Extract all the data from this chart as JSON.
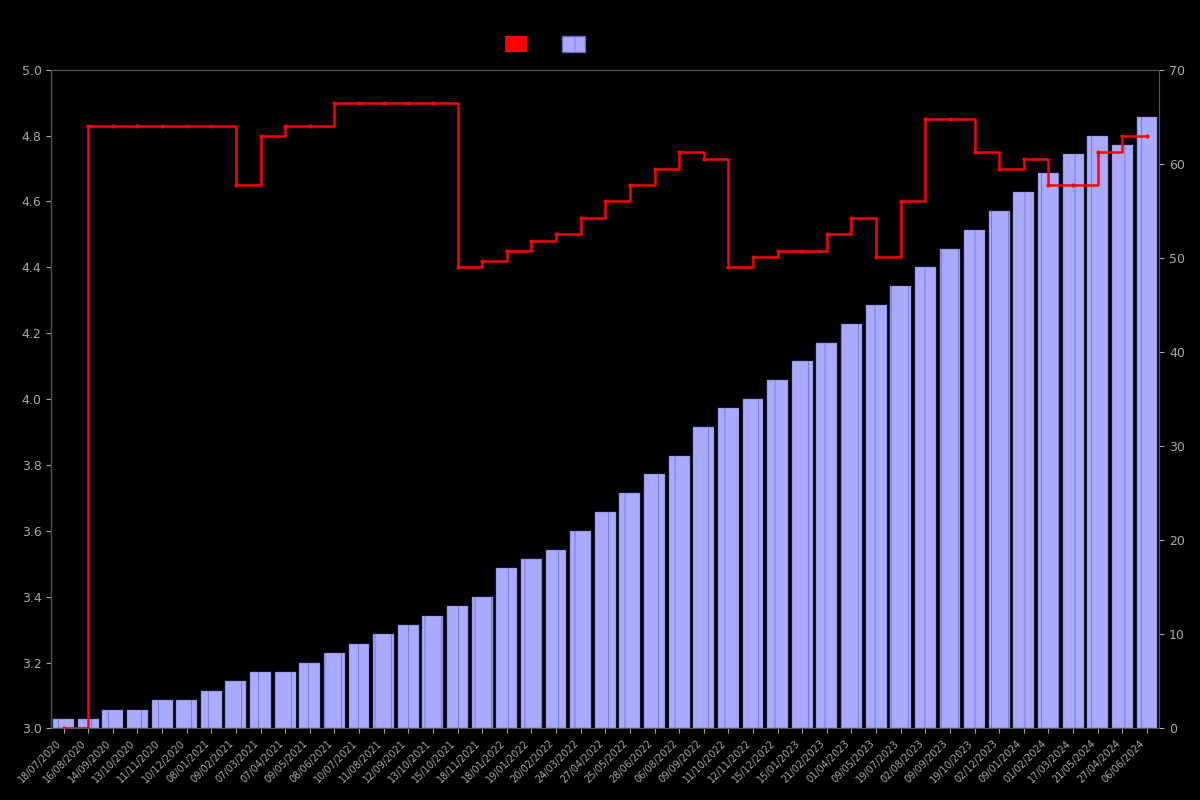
{
  "background_color": "#000000",
  "fig_facecolor": "#000000",
  "ax_facecolor": "#000000",
  "left_ylim": [
    3.0,
    5.0
  ],
  "right_ylim": [
    0,
    70
  ],
  "left_yticks": [
    3.0,
    3.2,
    3.4,
    3.6,
    3.8,
    4.0,
    4.2,
    4.4,
    4.6,
    4.8,
    5.0
  ],
  "right_yticks": [
    0,
    10,
    20,
    30,
    40,
    50,
    60,
    70
  ],
  "tick_color": "#aaaaaa",
  "spine_color": "#555555",
  "bar_facecolor": "#aaaaff",
  "bar_edgecolor": "#6666cc",
  "bar_hatch_color": "#ffffff",
  "line_color": "#ff0000",
  "line_width": 1.8,
  "dot_size": 3,
  "dates": [
    "18/07/2020",
    "16/08/2020",
    "14/09/2020",
    "13/10/2020",
    "11/11/2020",
    "10/12/2020",
    "08/01/2021",
    "09/02/2021",
    "07/03/2021",
    "07/04/2021",
    "09/05/2021",
    "08/06/2021",
    "10/07/2021",
    "11/08/2021",
    "12/09/2021",
    "13/10/2021",
    "15/10/2021",
    "18/11/2021",
    "18/01/2022",
    "19/01/2022",
    "20/02/2022",
    "24/03/2022",
    "27/04/2022",
    "25/05/2022",
    "28/06/2022",
    "06/08/2022",
    "09/09/2022",
    "11/10/2022",
    "12/11/2022",
    "15/12/2022",
    "15/01/2023",
    "21/02/2023",
    "01/04/2023",
    "09/05/2023",
    "19/07/2023",
    "02/08/2023",
    "09/09/2023",
    "19/10/2023",
    "02/12/2023",
    "09/01/2024",
    "01/02/2024",
    "17/03/2024",
    "21/05/2024",
    "27/04/2024",
    "06/06/2024"
  ],
  "counts": [
    1,
    1,
    2,
    2,
    3,
    3,
    4,
    5,
    6,
    6,
    7,
    8,
    9,
    10,
    11,
    12,
    13,
    14,
    17,
    18,
    19,
    21,
    23,
    25,
    27,
    29,
    32,
    34,
    35,
    37,
    39,
    41,
    43,
    45,
    47,
    49,
    51,
    53,
    55,
    57,
    59,
    61,
    63,
    62,
    65
  ],
  "ratings": [
    3.0,
    4.83,
    4.83,
    4.83,
    4.83,
    4.83,
    4.83,
    4.65,
    4.8,
    4.83,
    4.83,
    4.9,
    4.9,
    4.9,
    4.9,
    4.9,
    4.4,
    4.42,
    4.45,
    4.48,
    4.5,
    4.55,
    4.6,
    4.65,
    4.7,
    4.75,
    4.73,
    4.4,
    4.43,
    4.45,
    4.45,
    4.5,
    4.55,
    4.43,
    4.6,
    4.85,
    4.85,
    4.75,
    4.7,
    4.73,
    4.65,
    4.65,
    4.75,
    4.8,
    4.8
  ]
}
